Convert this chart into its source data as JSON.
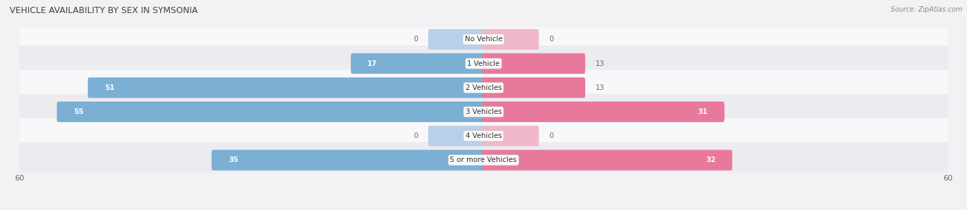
{
  "title": "VEHICLE AVAILABILITY BY SEX IN SYMSONIA",
  "source": "Source: ZipAtlas.com",
  "categories": [
    "No Vehicle",
    "1 Vehicle",
    "2 Vehicles",
    "3 Vehicles",
    "4 Vehicles",
    "5 or more Vehicles"
  ],
  "male_values": [
    0,
    17,
    51,
    55,
    0,
    35
  ],
  "female_values": [
    0,
    13,
    13,
    31,
    0,
    32
  ],
  "male_color": "#7bafd4",
  "female_color": "#e8799a",
  "male_color_zero": "#b8d0e8",
  "female_color_zero": "#f0b8c8",
  "axis_max": 60,
  "background_color": "#f2f2f5",
  "row_bg_even": "#f8f8fb",
  "row_bg_odd": "#ebebf0",
  "title_color": "#404040",
  "source_color": "#888888",
  "value_color_inside": "#ffffff",
  "value_color_outside": "#666666",
  "figsize": [
    14.06,
    3.06
  ],
  "dpi": 100
}
